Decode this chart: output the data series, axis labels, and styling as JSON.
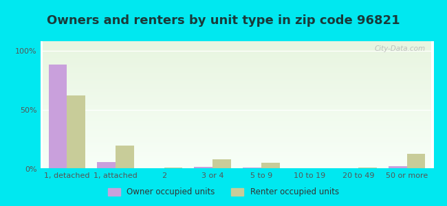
{
  "title": "Owners and renters by unit type in zip code 96821",
  "categories": [
    "1, detached",
    "1, attached",
    "2",
    "3 or 4",
    "5 to 9",
    "10 to 19",
    "20 to 49",
    "50 or more"
  ],
  "owner_values": [
    88,
    6,
    0.5,
    1.5,
    1.2,
    0.4,
    0.3,
    2.2
  ],
  "renter_values": [
    62,
    20,
    1.2,
    8,
    5,
    0.5,
    1,
    13
  ],
  "owner_color": "#c9a0dc",
  "renter_color": "#c8cc99",
  "background_color": "#00e8f0",
  "ylabel_ticks": [
    "0%",
    "50%",
    "100%"
  ],
  "ytick_values": [
    0,
    50,
    100
  ],
  "ylim": [
    0,
    108
  ],
  "bar_width": 0.38,
  "legend_owner": "Owner occupied units",
  "legend_renter": "Renter occupied units",
  "watermark": "City-Data.com",
  "title_fontsize": 13,
  "tick_fontsize": 8,
  "title_color": "#1a3a3a"
}
